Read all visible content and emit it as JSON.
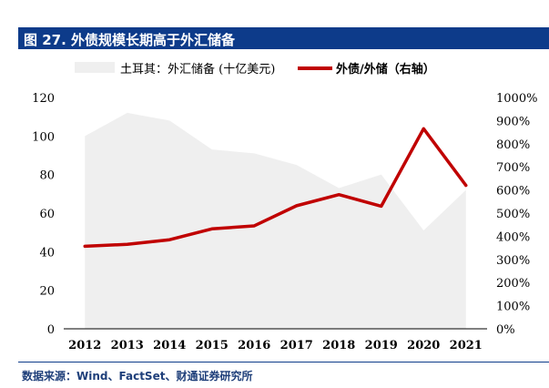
{
  "figure": {
    "title": "图 27. 外债规模长期高于外汇储备",
    "source": "数据来源：Wind、FactSet、财通证券研究所"
  },
  "colors": {
    "title_bar": "#0d3b8a",
    "area": "#efefef",
    "line": "#c00000"
  },
  "chart_data": {
    "type": "area",
    "categories": [
      "2012",
      "2013",
      "2014",
      "2015",
      "2016",
      "2017",
      "2018",
      "2019",
      "2020",
      "2021"
    ],
    "series": [
      {
        "name": "土耳其：外汇储备 (十亿美元)",
        "type": "area",
        "axis": "left",
        "values": [
          100,
          112,
          108,
          93,
          91,
          85,
          73,
          80,
          51,
          72
        ]
      },
      {
        "name": "外债/外储（右轴）",
        "type": "line",
        "axis": "right",
        "values": [
          357,
          365,
          385,
          432,
          445,
          532,
          580,
          530,
          865,
          620
        ]
      }
    ],
    "y_left": {
      "min": 0,
      "max": 120,
      "ticks": [
        "0",
        "20",
        "40",
        "60",
        "80",
        "100",
        "120"
      ]
    },
    "y_right": {
      "min": 0,
      "max": 1000,
      "ticks": [
        "0%",
        "100%",
        "200%",
        "300%",
        "400%",
        "500%",
        "600%",
        "700%",
        "800%",
        "900%",
        "1000%"
      ]
    },
    "grid": false,
    "legend_position": "top"
  }
}
